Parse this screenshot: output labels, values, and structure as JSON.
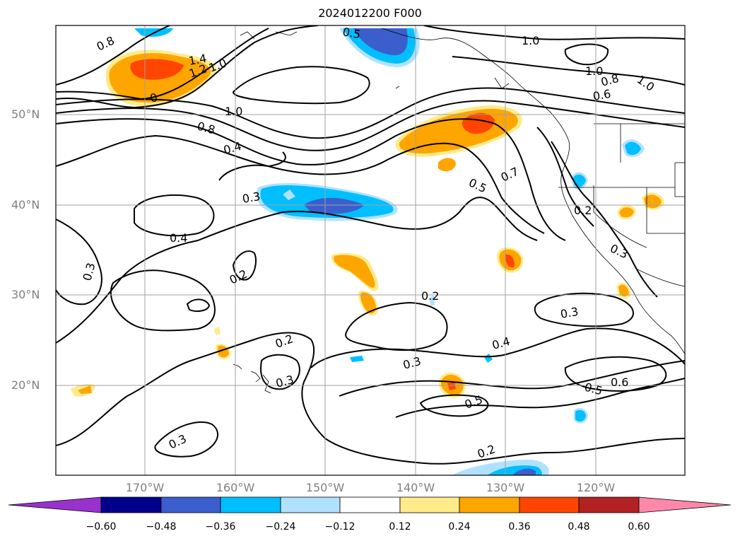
{
  "title": "2024012200 F000",
  "map": {
    "lat_labels": [
      "50°N",
      "40°N",
      "30°N",
      "20°N"
    ],
    "lon_labels": [
      "170°W",
      "160°W",
      "150°W",
      "140°W",
      "130°W",
      "120°W"
    ],
    "contour_labels": [
      "0.8",
      "1.4",
      "1.2",
      "1.0",
      "0.5",
      "1.0",
      "1.0",
      "0.8",
      "1.0",
      "0.6",
      "0.",
      "1.0",
      "0.8",
      "0.4",
      "0.7",
      "0.5",
      "0.3",
      "0.3",
      "0.4",
      "0.2",
      "0.3",
      "0.2",
      "0.3",
      "0.2",
      "0.2",
      "0.3",
      "0.4",
      "0.3",
      "0.5",
      "0.6",
      "0.5",
      "0.3",
      "0.2"
    ]
  },
  "colorbar": {
    "ticks": [
      "−0.60",
      "−0.48",
      "−0.36",
      "−0.24",
      "−0.12",
      "0.12",
      "0.24",
      "0.36",
      "0.48",
      "0.60"
    ],
    "colors": [
      "#9932cc",
      "#00008b",
      "#3a5fcd",
      "#00bfff",
      "#b0e2ff",
      "#ffffff",
      "#ffeb8a",
      "#ffa500",
      "#ff4500",
      "#b22222",
      "#ff88aa",
      "#ff88aa"
    ]
  }
}
